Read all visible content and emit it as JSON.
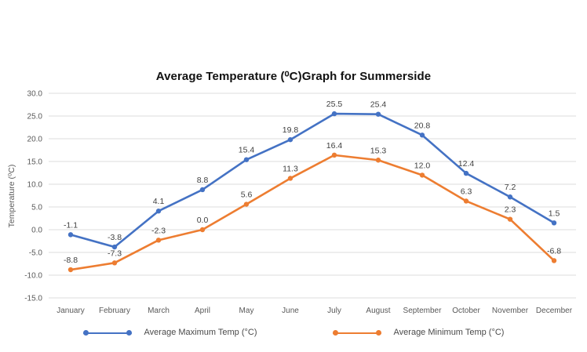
{
  "title": "Average Temperature (⁰C)Graph for Summerside",
  "chart_data": {
    "type": "line",
    "title": "Average Temperature (⁰C)Graph for Summerside",
    "categories": [
      "January",
      "February",
      "March",
      "April",
      "May",
      "June",
      "July",
      "August",
      "September",
      "October",
      "November",
      "December"
    ],
    "series": [
      {
        "name": "Average Maximum Temp (°C)",
        "color": "#4472C4",
        "values": [
          -1.1,
          -3.8,
          4.1,
          8.8,
          15.4,
          19.8,
          25.5,
          25.4,
          20.8,
          12.4,
          7.2,
          1.5
        ]
      },
      {
        "name": "Average Minimum Temp (°C)",
        "color": "#ED7D31",
        "values": [
          -8.8,
          -7.3,
          -2.3,
          0.0,
          5.6,
          11.3,
          16.4,
          15.3,
          12.0,
          6.3,
          2.3,
          -6.8
        ]
      }
    ],
    "xlabel": "",
    "ylabel": "Temperature (⁰C)",
    "ylim": [
      -15,
      30
    ],
    "ytick_step": 5,
    "ytick_labels": [
      "30.0",
      "25.0",
      "20.0",
      "15.0",
      "10.0",
      "5.0",
      "0.0",
      "-5.0",
      "-10.0",
      "-15.0"
    ],
    "data_labels": true,
    "grid": true,
    "legend_position": "bottom",
    "colors": {
      "gridline": "#DCDCDC",
      "axis_text": "#595959",
      "data_label_text": "#404040",
      "title_text": "#111111",
      "background": "#FFFFFF"
    }
  }
}
